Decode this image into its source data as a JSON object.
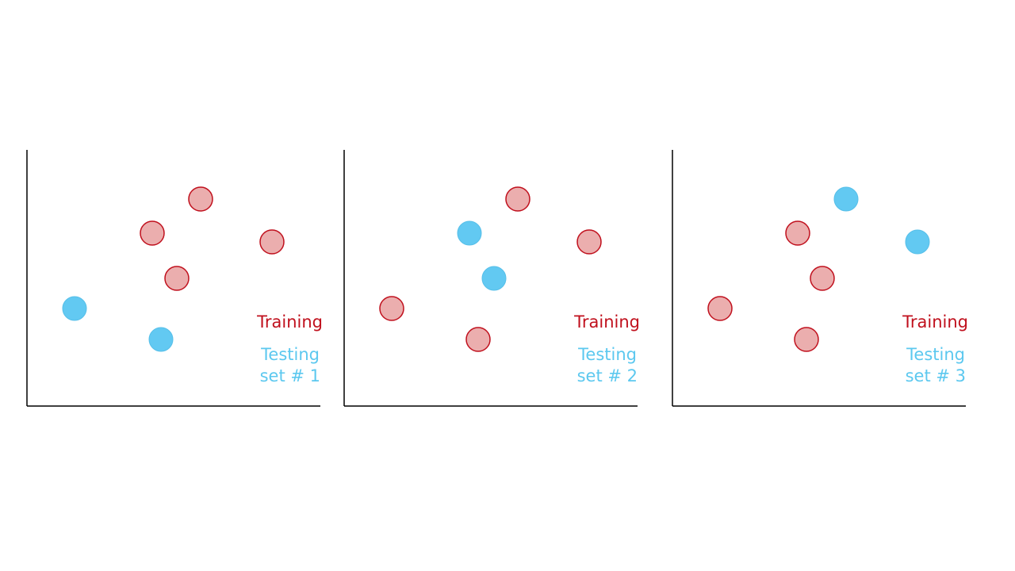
{
  "colors": {
    "training_fill": "#ebaeae",
    "training_stroke": "#c0101d",
    "training_text": "#c0101d",
    "testing_fill": "#62c9f2",
    "testing_stroke": "#56bfe9",
    "testing_text": "#5cc8ef",
    "axis": "#000000"
  },
  "panels": [
    {
      "training_label": "Training",
      "testing_label_line1": "Testing",
      "testing_label_line2": "set # 1",
      "testing_point_indices": [
        4,
        5
      ]
    },
    {
      "training_label": "Training",
      "testing_label_line1": "Testing",
      "testing_label_line2": "set # 2",
      "testing_point_indices": [
        1,
        3
      ]
    },
    {
      "training_label": "Training",
      "testing_label_line1": "Testing",
      "testing_label_line2": "set # 3",
      "testing_point_indices": [
        0,
        2
      ]
    }
  ]
}
